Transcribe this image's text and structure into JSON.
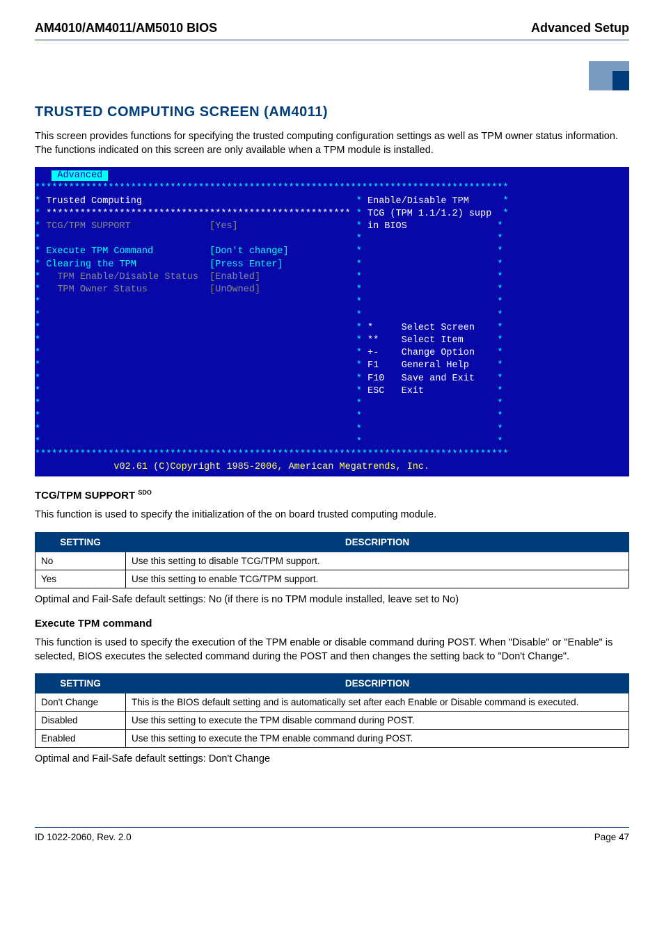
{
  "header": {
    "left": "AM4010/AM4011/AM5010 BIOS",
    "right": "Advanced Setup"
  },
  "corner_logo": {
    "bg": "#7a9ac0",
    "accent": "#003d7a"
  },
  "section": {
    "title": "TRUSTED COMPUTING SCREEN (AM4011)",
    "intro": "This screen provides functions for specifying the trusted computing configuration settings as well as TPM owner status information. The functions indicated on this screen are only available when a TPM module is installed."
  },
  "bios": {
    "tab": "Advanced",
    "panel_title": "Trusted Computing",
    "items": [
      {
        "label": "TCG/TPM SUPPORT",
        "value": "[Yes]",
        "style": "grey",
        "indent": 1
      },
      {
        "label": "",
        "value": "",
        "style": "blank"
      },
      {
        "label": "Execute TPM Command",
        "value": "[Don't change]",
        "style": "cyan",
        "indent": 1
      },
      {
        "label": "Clearing the TPM",
        "value": "[Press Enter]",
        "style": "cyan",
        "indent": 1
      },
      {
        "label": "TPM Enable/Disable Status",
        "value": "[Enabled]",
        "style": "grey",
        "indent": 3
      },
      {
        "label": "TPM Owner Status",
        "value": "[UnOwned]",
        "style": "grey",
        "indent": 3
      }
    ],
    "help": [
      "Enable/Disable TPM",
      "TCG (TPM 1.1/1.2) supp",
      "in BIOS"
    ],
    "nav": [
      {
        "key": "*",
        "label": "Select Screen"
      },
      {
        "key": "**",
        "label": "Select Item"
      },
      {
        "key": "+-",
        "label": "Change Option"
      },
      {
        "key": "F1",
        "label": "General Help"
      },
      {
        "key": "F10",
        "label": "Save and Exit"
      },
      {
        "key": "ESC",
        "label": "Exit"
      }
    ],
    "copyright": "v02.61 (C)Copyright 1985-2006, American Megatrends, Inc."
  },
  "tcg": {
    "heading": "TCG/TPM SUPPORT",
    "sup": "SDO",
    "desc": "This function is used to specify the initialization of the on board trusted computing module.",
    "col_setting": "SETTING",
    "col_desc": "DESCRIPTION",
    "rows": [
      {
        "s": "No",
        "d": "Use this setting to disable TCG/TPM support."
      },
      {
        "s": "Yes",
        "d": "Use this setting to enable TCG/TPM support."
      }
    ],
    "defaults": "Optimal and Fail-Safe default settings: No (if there is no TPM module installed, leave set to No)"
  },
  "exec": {
    "heading": "Execute TPM command",
    "desc": "This function is used to specify the execution of the TPM enable or disable command during POST. When \"Disable\" or \"Enable\" is selected, BIOS executes the selected command during the POST and then changes the setting back to \"Don't Change\".",
    "col_setting": "SETTING",
    "col_desc": "DESCRIPTION",
    "rows": [
      {
        "s": "Don't Change",
        "d": "This is the BIOS default setting and is automatically set after each Enable or Disable command is executed."
      },
      {
        "s": "Disabled",
        "d": "Use this setting to execute the TPM disable command during POST."
      },
      {
        "s": "Enabled",
        "d": "Use this setting to execute the TPM enable command during POST."
      }
    ],
    "defaults": "Optimal and Fail-Safe default settings: Don't Change"
  },
  "footer": {
    "left": "ID 1022-2060, Rev. 2.0",
    "right": "Page 47"
  }
}
